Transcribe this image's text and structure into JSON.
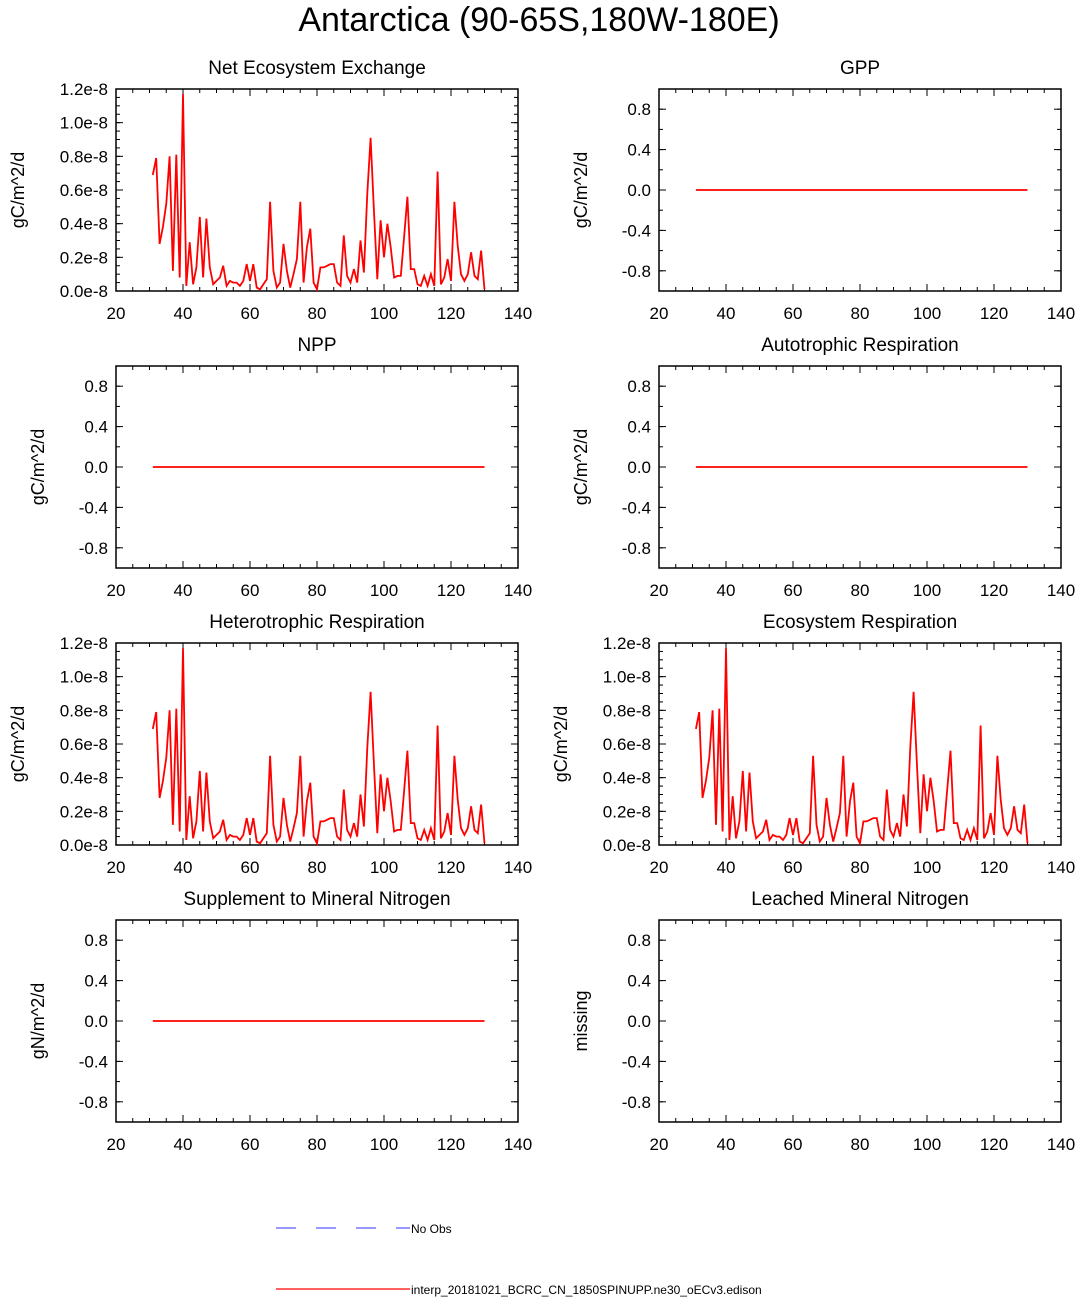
{
  "figure": {
    "title": "Antarctica (90-65S,180W-180E)",
    "legend": [
      {
        "label": "No Obs",
        "color": "#5a5aff",
        "style": "dashed"
      },
      {
        "label": "interp_20181021_BCRC_CN_1850SPINUPP.ne30_oECv3.edison",
        "color": "#ff0000",
        "style": "solid"
      }
    ]
  },
  "chart_data": [
    {
      "type": "line",
      "title": "Net Ecosystem Exchange",
      "ylabel": "gC/m^2/d",
      "xlim": [
        20,
        140
      ],
      "xticks": [
        "20",
        "40",
        "60",
        "80",
        "100",
        "120",
        "140"
      ],
      "ylim": [
        0,
        1.2e-08
      ],
      "yticks": [
        "0.0e-8",
        "0.2e-8",
        "0.4e-8",
        "0.6e-8",
        "0.8e-8",
        "1.0e-8",
        "1.2e-8"
      ],
      "series": [
        {
          "color": "#ff0000",
          "x_start": 31,
          "values": [
            0.69,
            0.79,
            0.28,
            0.38,
            0.52,
            0.8,
            0.12,
            0.81,
            0.08,
            1.17,
            0.03,
            0.29,
            0.04,
            0.14,
            0.44,
            0.08,
            0.43,
            0.14,
            0.04,
            0.06,
            0.08,
            0.15,
            0.03,
            0.06,
            0.05,
            0.05,
            0.03,
            0.06,
            0.16,
            0.06,
            0.16,
            0.02,
            0.01,
            0.04,
            0.07,
            0.53,
            0.12,
            0.02,
            0.05,
            0.28,
            0.12,
            0.02,
            0.1,
            0.19,
            0.53,
            0.05,
            0.26,
            0.37,
            0.05,
            0.01,
            0.14,
            0.14,
            0.15,
            0.16,
            0.16,
            0.05,
            0.03,
            0.33,
            0.09,
            0.05,
            0.13,
            0.05,
            0.3,
            0.11,
            0.58,
            0.91,
            0.47,
            0.07,
            0.42,
            0.2,
            0.4,
            0.26,
            0.08,
            0.09,
            0.09,
            0.32,
            0.56,
            0.13,
            0.13,
            0.04,
            0.03,
            0.09,
            0.03,
            0.1,
            0.03,
            0.71,
            0.04,
            0.08,
            0.19,
            0.06,
            0.53,
            0.27,
            0.1,
            0.06,
            0.1,
            0.23,
            0.09,
            0.07,
            0.24,
            0.01
          ]
        }
      ]
    },
    {
      "type": "line",
      "title": "GPP",
      "ylabel": "gC/m^2/d",
      "xlim": [
        20,
        140
      ],
      "xticks": [
        "20",
        "40",
        "60",
        "80",
        "100",
        "120",
        "140"
      ],
      "ylim": [
        -1,
        1
      ],
      "yticks": [
        "-0.8",
        "-0.4",
        "0.0",
        "0.4",
        "0.8"
      ],
      "series": [
        {
          "color": "#ff0000",
          "x_start": 31,
          "x_end": 130,
          "constant": 0
        }
      ]
    },
    {
      "type": "line",
      "title": "NPP",
      "ylabel": "gC/m^2/d",
      "xlim": [
        20,
        140
      ],
      "xticks": [
        "20",
        "40",
        "60",
        "80",
        "100",
        "120",
        "140"
      ],
      "ylim": [
        -1,
        1
      ],
      "yticks": [
        "-0.8",
        "-0.4",
        "0.0",
        "0.4",
        "0.8"
      ],
      "series": [
        {
          "color": "#ff0000",
          "x_start": 31,
          "x_end": 130,
          "constant": 0
        }
      ]
    },
    {
      "type": "line",
      "title": "Autotrophic Respiration",
      "ylabel": "gC/m^2/d",
      "xlim": [
        20,
        140
      ],
      "xticks": [
        "20",
        "40",
        "60",
        "80",
        "100",
        "120",
        "140"
      ],
      "ylim": [
        -1,
        1
      ],
      "yticks": [
        "-0.8",
        "-0.4",
        "0.0",
        "0.4",
        "0.8"
      ],
      "series": [
        {
          "color": "#ff0000",
          "x_start": 31,
          "x_end": 130,
          "constant": 0
        }
      ]
    },
    {
      "type": "line",
      "title": "Heterotrophic Respiration",
      "ylabel": "gC/m^2/d",
      "xlim": [
        20,
        140
      ],
      "xticks": [
        "20",
        "40",
        "60",
        "80",
        "100",
        "120",
        "140"
      ],
      "ylim": [
        0,
        1.2e-08
      ],
      "yticks": [
        "0.0e-8",
        "0.2e-8",
        "0.4e-8",
        "0.6e-8",
        "0.8e-8",
        "1.0e-8",
        "1.2e-8"
      ],
      "series": [
        {
          "color": "#ff0000",
          "x_start": 31,
          "values": [
            0.69,
            0.79,
            0.28,
            0.38,
            0.52,
            0.8,
            0.12,
            0.81,
            0.08,
            1.17,
            0.03,
            0.29,
            0.04,
            0.14,
            0.44,
            0.08,
            0.43,
            0.14,
            0.04,
            0.06,
            0.08,
            0.15,
            0.03,
            0.06,
            0.05,
            0.05,
            0.03,
            0.06,
            0.16,
            0.06,
            0.16,
            0.02,
            0.01,
            0.04,
            0.07,
            0.53,
            0.12,
            0.02,
            0.05,
            0.28,
            0.12,
            0.02,
            0.1,
            0.19,
            0.53,
            0.05,
            0.26,
            0.37,
            0.05,
            0.01,
            0.14,
            0.14,
            0.15,
            0.16,
            0.16,
            0.05,
            0.03,
            0.33,
            0.09,
            0.05,
            0.13,
            0.05,
            0.3,
            0.11,
            0.58,
            0.91,
            0.47,
            0.07,
            0.42,
            0.2,
            0.4,
            0.26,
            0.08,
            0.09,
            0.09,
            0.32,
            0.56,
            0.13,
            0.13,
            0.04,
            0.03,
            0.09,
            0.03,
            0.1,
            0.03,
            0.71,
            0.04,
            0.08,
            0.19,
            0.06,
            0.53,
            0.27,
            0.1,
            0.06,
            0.1,
            0.23,
            0.09,
            0.07,
            0.24,
            0.01
          ]
        }
      ]
    },
    {
      "type": "line",
      "title": "Ecosystem Respiration",
      "ylabel": "gC/m^2/d",
      "xlim": [
        20,
        140
      ],
      "xticks": [
        "20",
        "40",
        "60",
        "80",
        "100",
        "120",
        "140"
      ],
      "ylim": [
        0,
        1.2e-08
      ],
      "yticks": [
        "0.0e-8",
        "0.2e-8",
        "0.4e-8",
        "0.6e-8",
        "0.8e-8",
        "1.0e-8",
        "1.2e-8"
      ],
      "series": [
        {
          "color": "#ff0000",
          "x_start": 31,
          "values": [
            0.69,
            0.79,
            0.28,
            0.38,
            0.52,
            0.8,
            0.12,
            0.81,
            0.08,
            1.17,
            0.03,
            0.29,
            0.04,
            0.14,
            0.44,
            0.08,
            0.43,
            0.14,
            0.04,
            0.06,
            0.08,
            0.15,
            0.03,
            0.06,
            0.05,
            0.05,
            0.03,
            0.06,
            0.16,
            0.06,
            0.16,
            0.02,
            0.01,
            0.04,
            0.07,
            0.53,
            0.12,
            0.02,
            0.05,
            0.28,
            0.12,
            0.02,
            0.1,
            0.19,
            0.53,
            0.05,
            0.26,
            0.37,
            0.05,
            0.01,
            0.14,
            0.14,
            0.15,
            0.16,
            0.16,
            0.05,
            0.03,
            0.33,
            0.09,
            0.05,
            0.13,
            0.05,
            0.3,
            0.11,
            0.58,
            0.91,
            0.47,
            0.07,
            0.42,
            0.2,
            0.4,
            0.26,
            0.08,
            0.09,
            0.09,
            0.32,
            0.56,
            0.13,
            0.13,
            0.04,
            0.03,
            0.09,
            0.03,
            0.1,
            0.03,
            0.71,
            0.04,
            0.08,
            0.19,
            0.06,
            0.53,
            0.27,
            0.1,
            0.06,
            0.1,
            0.23,
            0.09,
            0.07,
            0.24,
            0.01
          ]
        }
      ]
    },
    {
      "type": "line",
      "title": "Supplement to Mineral Nitrogen",
      "ylabel": "gN/m^2/d",
      "xlim": [
        20,
        140
      ],
      "xticks": [
        "20",
        "40",
        "60",
        "80",
        "100",
        "120",
        "140"
      ],
      "ylim": [
        -1,
        1
      ],
      "yticks": [
        "-0.8",
        "-0.4",
        "0.0",
        "0.4",
        "0.8"
      ],
      "series": [
        {
          "color": "#ff0000",
          "x_start": 31,
          "x_end": 130,
          "constant": 0
        }
      ]
    },
    {
      "type": "line",
      "title": "Leached Mineral Nitrogen",
      "ylabel": "missing",
      "xlim": [
        20,
        140
      ],
      "xticks": [
        "20",
        "40",
        "60",
        "80",
        "100",
        "120",
        "140"
      ],
      "ylim": [
        -1,
        1
      ],
      "yticks": [
        "-0.8",
        "-0.4",
        "0.0",
        "0.4",
        "0.8"
      ],
      "series": []
    }
  ]
}
